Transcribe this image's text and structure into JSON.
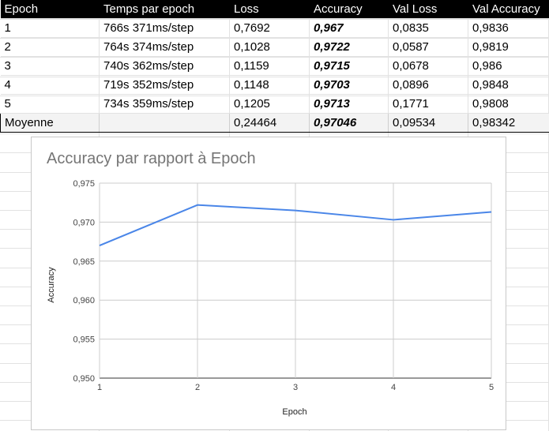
{
  "table": {
    "headers": [
      "Epoch",
      "Temps par epoch",
      "Loss",
      "Accuracy",
      "Val Loss",
      "Val Accuracy"
    ],
    "rows": [
      [
        "1",
        "766s 371ms/step",
        "0,7692",
        "0,967",
        "0,0835",
        "0,9836"
      ],
      [
        "2",
        "764s 374ms/step",
        "0,1028",
        "0,9722",
        "0,0587",
        "0,9819"
      ],
      [
        "3",
        "740s 362ms/step",
        "0,1159",
        "0,9715",
        "0,0678",
        "0,986"
      ],
      [
        "4",
        "719s 352ms/step",
        "0,1148",
        "0,9703",
        "0,0896",
        "0,9848"
      ],
      [
        "5",
        "734s 359ms/step",
        "0,1205",
        "0,9713",
        "0,1771",
        "0,9808"
      ]
    ],
    "average": [
      "Moyenne",
      "",
      "0,24464",
      "0,97046",
      "0,09534",
      "0,98342"
    ]
  },
  "chart_data": {
    "type": "line",
    "title": "Accuracy par rapport à Epoch",
    "xlabel": "Epoch",
    "ylabel": "Accuracy",
    "x": [
      1,
      2,
      3,
      4,
      5
    ],
    "x_tick_labels": [
      "1",
      "2",
      "3",
      "4",
      "5"
    ],
    "series": [
      {
        "values": [
          0.967,
          0.9722,
          0.9715,
          0.9703,
          0.9713
        ],
        "color": "#4a86e8"
      }
    ],
    "ylim": [
      0.95,
      0.975
    ],
    "y_ticks": [
      0.95,
      0.955,
      0.96,
      0.965,
      0.97,
      0.975
    ],
    "y_tick_labels": [
      "0,950",
      "0,955",
      "0,960",
      "0,965",
      "0,970",
      "0,975"
    ],
    "grid": true,
    "legend": "none"
  },
  "colors": {
    "header_bg": "#000000",
    "line": "#4a86e8",
    "gridline": "#cccccc",
    "title": "#757575"
  }
}
